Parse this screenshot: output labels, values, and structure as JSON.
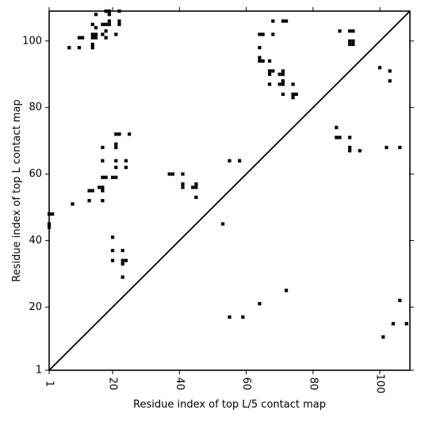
{
  "chart_data": {
    "type": "scatter",
    "xlabel": "Residue index of top L/5 contact map",
    "ylabel": "Residue index of top L contact map",
    "xlim": [
      1,
      109
    ],
    "ylim": [
      1,
      109
    ],
    "x_ticks": [
      1,
      20,
      40,
      60,
      80,
      100
    ],
    "y_ticks": [
      1,
      20,
      40,
      60,
      80,
      100
    ],
    "x_tick_labels": [
      "1",
      "20",
      "40",
      "60",
      "80",
      "100"
    ],
    "y_tick_labels": [
      "1",
      "20",
      "40",
      "60",
      "80",
      "100"
    ],
    "diagonal": true,
    "grid": false,
    "marker_color": "#000000",
    "points": [
      [
        1,
        48
      ],
      [
        2,
        48
      ],
      [
        1,
        45
      ],
      [
        1,
        44
      ],
      [
        7,
        98
      ],
      [
        8,
        51
      ],
      [
        10,
        101
      ],
      [
        11,
        101
      ],
      [
        10,
        98
      ],
      [
        13,
        55
      ],
      [
        14,
        55
      ],
      [
        13,
        52
      ],
      [
        14,
        98
      ],
      [
        14,
        99
      ],
      [
        14,
        101
      ],
      [
        14,
        102
      ],
      [
        15,
        101
      ],
      [
        15,
        102
      ],
      [
        14,
        105
      ],
      [
        15,
        104
      ],
      [
        15,
        108
      ],
      [
        16,
        56
      ],
      [
        17,
        56
      ],
      [
        17,
        55
      ],
      [
        17,
        52
      ],
      [
        17,
        59
      ],
      [
        18,
        59
      ],
      [
        17,
        64
      ],
      [
        17,
        68
      ],
      [
        17,
        102
      ],
      [
        18,
        103
      ],
      [
        18,
        101
      ],
      [
        17,
        105
      ],
      [
        18,
        105
      ],
      [
        19,
        105
      ],
      [
        19,
        106
      ],
      [
        18,
        109
      ],
      [
        19,
        108
      ],
      [
        19,
        109
      ],
      [
        20,
        59
      ],
      [
        21,
        59
      ],
      [
        20,
        41
      ],
      [
        20,
        37
      ],
      [
        20,
        34
      ],
      [
        21,
        72
      ],
      [
        22,
        72
      ],
      [
        21,
        69
      ],
      [
        21,
        68
      ],
      [
        21,
        64
      ],
      [
        21,
        62
      ],
      [
        21,
        102
      ],
      [
        22,
        105
      ],
      [
        22,
        106
      ],
      [
        22,
        109
      ],
      [
        23,
        37
      ],
      [
        23,
        34
      ],
      [
        24,
        34
      ],
      [
        23,
        33
      ],
      [
        23,
        29
      ],
      [
        24,
        64
      ],
      [
        24,
        62
      ],
      [
        25,
        72
      ],
      [
        37,
        60
      ],
      [
        38,
        60
      ],
      [
        41,
        60
      ],
      [
        41,
        57
      ],
      [
        41,
        56
      ],
      [
        44,
        56
      ],
      [
        45,
        56
      ],
      [
        45,
        57
      ],
      [
        45,
        53
      ],
      [
        53,
        45
      ],
      [
        55,
        64
      ],
      [
        58,
        64
      ],
      [
        55,
        17
      ],
      [
        59,
        17
      ],
      [
        64,
        102
      ],
      [
        65,
        102
      ],
      [
        64,
        98
      ],
      [
        64,
        95
      ],
      [
        64,
        94
      ],
      [
        65,
        94
      ],
      [
        64,
        21
      ],
      [
        67,
        94
      ],
      [
        67,
        91
      ],
      [
        68,
        91
      ],
      [
        67,
        90
      ],
      [
        67,
        87
      ],
      [
        68,
        102
      ],
      [
        68,
        106
      ],
      [
        70,
        90
      ],
      [
        71,
        90
      ],
      [
        71,
        91
      ],
      [
        70,
        87
      ],
      [
        71,
        87
      ],
      [
        71,
        88
      ],
      [
        71,
        84
      ],
      [
        71,
        106
      ],
      [
        72,
        106
      ],
      [
        72,
        25
      ],
      [
        74,
        87
      ],
      [
        74,
        84
      ],
      [
        75,
        84
      ],
      [
        74,
        83
      ],
      [
        87,
        74
      ],
      [
        87,
        71
      ],
      [
        88,
        71
      ],
      [
        88,
        103
      ],
      [
        91,
        103
      ],
      [
        92,
        103
      ],
      [
        91,
        100
      ],
      [
        92,
        100
      ],
      [
        91,
        99
      ],
      [
        92,
        99
      ],
      [
        91,
        71
      ],
      [
        91,
        68
      ],
      [
        91,
        67
      ],
      [
        94,
        67
      ],
      [
        100,
        92
      ],
      [
        103,
        91
      ],
      [
        103,
        88
      ],
      [
        102,
        68
      ],
      [
        106,
        68
      ],
      [
        101,
        11
      ],
      [
        104,
        15
      ],
      [
        106,
        22
      ],
      [
        108,
        15
      ]
    ]
  }
}
